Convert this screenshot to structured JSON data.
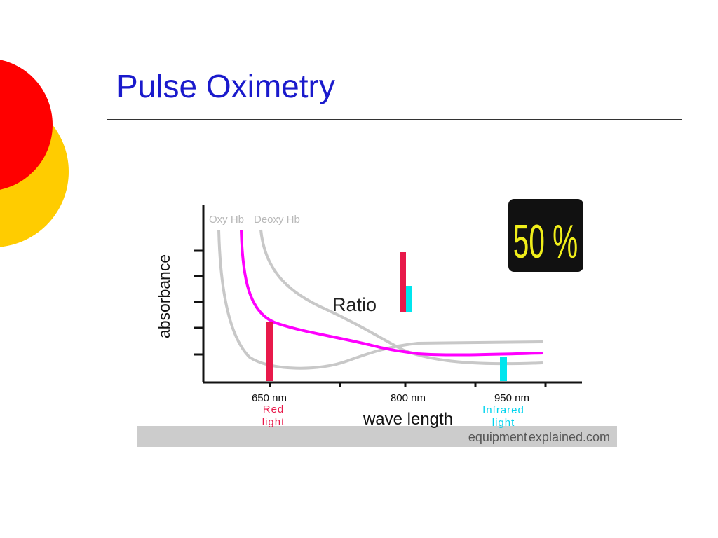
{
  "slide": {
    "title": "Pulse Oximetry"
  },
  "figure": {
    "y_axis_label": "absorbance",
    "x_axis_label": "wave length",
    "curve_labels": {
      "oxy": "Oxy Hb",
      "deoxy": "Deoxy Hb"
    },
    "ticks": [
      "650 nm",
      "800 nm",
      "950 nm"
    ],
    "red_light_label": [
      "Red",
      "light"
    ],
    "infrared_label": [
      "Infrared",
      "light"
    ],
    "ratio_label": "Ratio",
    "saturation_display": "50 %",
    "credit": {
      "part1": "equipment",
      "part2": "explained",
      "part3": ".com"
    }
  },
  "colors": {
    "title": "#1a1acc",
    "deco_red": "#ff0000",
    "deco_yellow": "#ffcc00",
    "mixed_curve": "#ff00ff",
    "red_bar": "#e8194a",
    "infrared_bar": "#00e5ee",
    "gray_curves": "#c8c8c8",
    "display_bg": "#111111",
    "display_text": "#f0ee1a",
    "credit_bar": "#cccccc"
  }
}
